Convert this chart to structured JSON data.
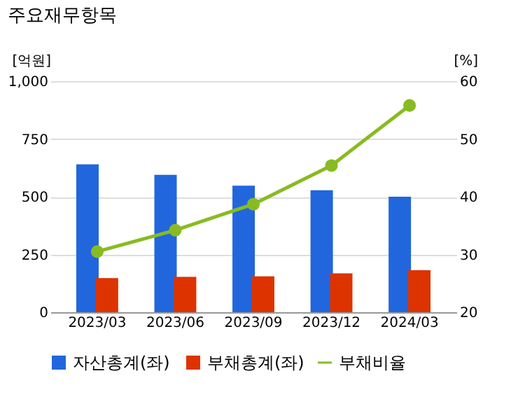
{
  "chart_data": {
    "type": "bar",
    "title": "주요재무항목",
    "ylabel": "[억원]",
    "y2label": "[%]",
    "categories": [
      "2023/03",
      "2023/06",
      "2023/09",
      "2023/12",
      "2024/03"
    ],
    "series": [
      {
        "name": "자산총계(좌)",
        "color": "#2266dd",
        "values": [
          640,
          595,
          548,
          528,
          500
        ]
      },
      {
        "name": "부채총계(좌)",
        "color": "#dd3300",
        "values": [
          148,
          153,
          155,
          168,
          182
        ]
      },
      {
        "name": "부채비율",
        "type": "line",
        "axis": "y2",
        "color": "#88bb22",
        "marker": "circle",
        "values": [
          30.5,
          34.2,
          38.7,
          45.4,
          55.8
        ]
      }
    ],
    "ylim": [
      0,
      1000
    ],
    "yticks": [
      0,
      250,
      500,
      750,
      {
        "value": 1000,
        "label": "1,000"
      }
    ],
    "y2lim": [
      20,
      60
    ],
    "y2ticks": [
      20,
      30,
      40,
      50,
      60
    ],
    "grid": "y",
    "legend": "bottom"
  }
}
